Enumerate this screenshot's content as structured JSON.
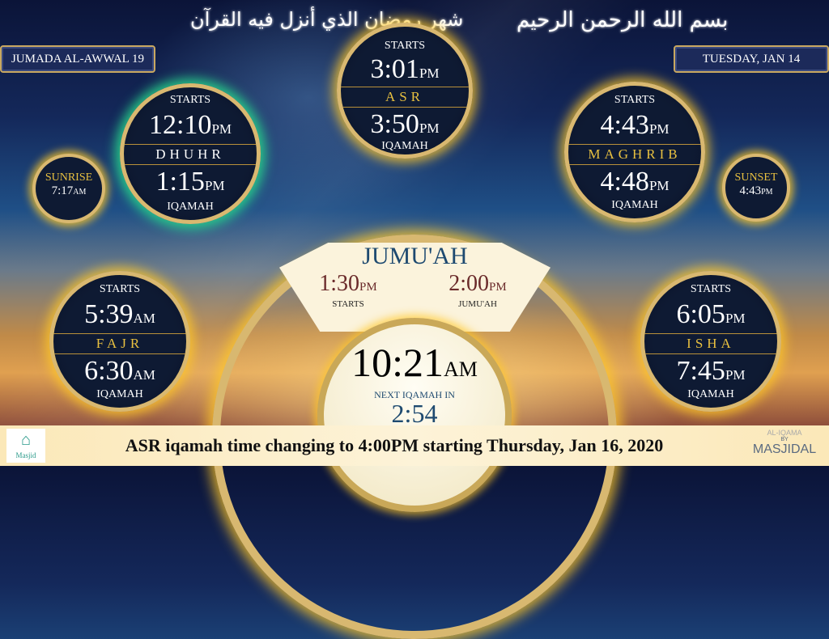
{
  "header": {
    "hijri_date": "JUMADA AL-AWWAL 19",
    "gregorian_date": "TUESDAY, JAN 14",
    "calligraphy_left": "شهر رمضان الذي أنزل فيه القرآن",
    "calligraphy_right": "بسم الله الرحمن الرحيم"
  },
  "prayers": {
    "dhuhr": {
      "name": "DHUHR",
      "starts_label": "STARTS",
      "start": "12:10",
      "start_ampm": "PM",
      "iqamah": "1:15",
      "iqamah_ampm": "PM",
      "iqamah_label": "IQAMAH"
    },
    "asr": {
      "name": "ASR",
      "starts_label": "STARTS",
      "start": "3:01",
      "start_ampm": "PM",
      "iqamah": "3:50",
      "iqamah_ampm": "PM",
      "iqamah_label": "IQAMAH"
    },
    "maghrib": {
      "name": "MAGHRIB",
      "starts_label": "STARTS",
      "start": "4:43",
      "start_ampm": "PM",
      "iqamah": "4:48",
      "iqamah_ampm": "PM",
      "iqamah_label": "IQAMAH"
    },
    "fajr": {
      "name": "FAJR",
      "starts_label": "STARTS",
      "start": "5:39",
      "start_ampm": "AM",
      "iqamah": "6:30",
      "iqamah_ampm": "AM",
      "iqamah_label": "IQAMAH"
    },
    "isha": {
      "name": "ISHA",
      "starts_label": "STARTS",
      "start": "6:05",
      "start_ampm": "PM",
      "iqamah": "7:45",
      "iqamah_ampm": "PM",
      "iqamah_label": "IQAMAH"
    }
  },
  "sunrise": {
    "label": "SUNRISE",
    "time": "7:17",
    "ampm": "AM"
  },
  "sunset": {
    "label": "SUNSET",
    "time": "4:43",
    "ampm": "PM"
  },
  "jumuah": {
    "title": "JUMU'AH",
    "start": "1:30",
    "start_ampm": "PM",
    "start_label": "STARTS",
    "jumuah": "2:00",
    "jumuah_ampm": "PM",
    "jumuah_label": "JUMU'AH"
  },
  "clock": {
    "time": "10:21",
    "ampm": "AM",
    "next_label": "NEXT IQAMAH IN",
    "countdown": "2:54"
  },
  "ticker": {
    "message": "ASR iqamah time changing to 4:00PM starting Thursday, Jan 16, 2020",
    "logo_text": "Masjid",
    "brand_line1": "AL-IQAMA",
    "brand_line2": "BY",
    "brand_line3": "MASJIDAL"
  },
  "colors": {
    "gold": "#e8c040",
    "active_glow": "#28dc8c",
    "navy": "#0e1a33",
    "jumuah_blue": "#1e4a70",
    "jumuah_red": "#6a2a2a"
  }
}
